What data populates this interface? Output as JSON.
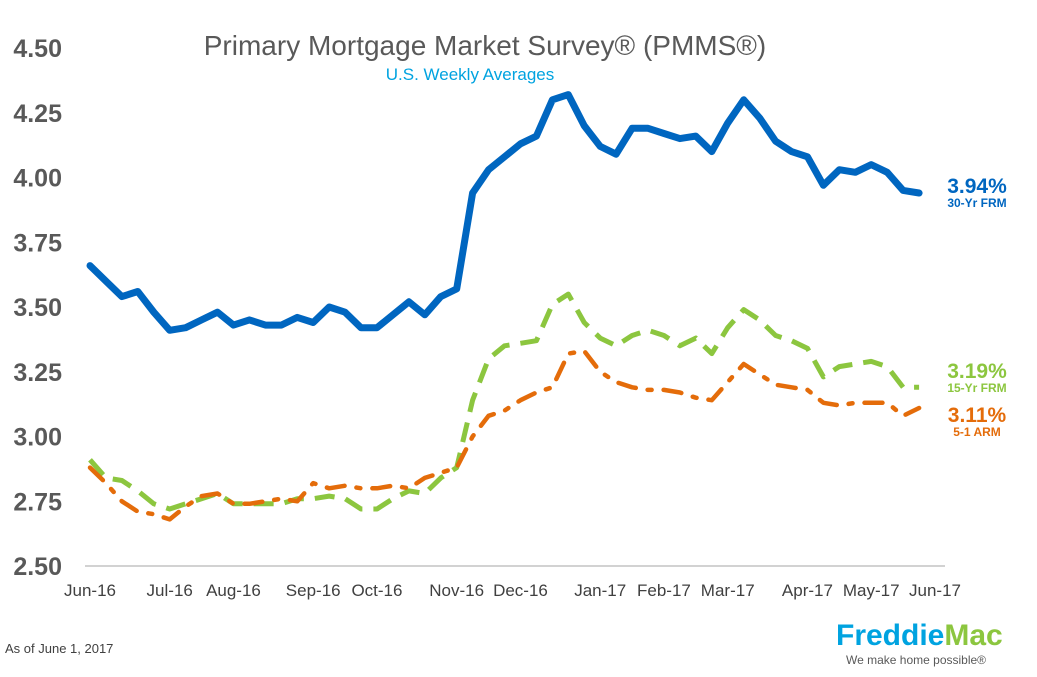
{
  "chart_data": {
    "type": "line",
    "title": "Primary Mortgage Market Survey® (PMMS®)",
    "subtitle": "U.S. Weekly Averages",
    "footnote": "As of June 1, 2017",
    "brand": {
      "name": "FreddieMac",
      "name_part1": "Freddie",
      "name_part2": "Mac",
      "tagline": "We make home possible®"
    },
    "ylim": [
      2.5,
      4.5
    ],
    "yticks": [
      "4.50",
      "4.25",
      "4.00",
      "3.75",
      "3.50",
      "3.25",
      "3.00",
      "2.75",
      "2.50"
    ],
    "xticks": [
      {
        "label": "Jun-16",
        "week": 0
      },
      {
        "label": "Jul-16",
        "week": 5
      },
      {
        "label": "Aug-16",
        "week": 9
      },
      {
        "label": "Sep-16",
        "week": 14
      },
      {
        "label": "Oct-16",
        "week": 18
      },
      {
        "label": "Nov-16",
        "week": 23
      },
      {
        "label": "Dec-16",
        "week": 27
      },
      {
        "label": "Jan-17",
        "week": 32
      },
      {
        "label": "Feb-17",
        "week": 36
      },
      {
        "label": "Mar-17",
        "week": 40
      },
      {
        "label": "Apr-17",
        "week": 45
      },
      {
        "label": "May-17",
        "week": 49
      },
      {
        "label": "Jun-17",
        "week": 53
      }
    ],
    "x_range": [
      0,
      53
    ],
    "series": [
      {
        "name": "30-Yr FRM",
        "end_value": "3.94%",
        "color": "#0066c0",
        "style": "solid",
        "values": [
          3.66,
          3.6,
          3.54,
          3.56,
          3.48,
          3.41,
          3.42,
          3.45,
          3.48,
          3.43,
          3.45,
          3.43,
          3.43,
          3.46,
          3.44,
          3.5,
          3.48,
          3.42,
          3.42,
          3.47,
          3.52,
          3.47,
          3.54,
          3.57,
          3.94,
          4.03,
          4.08,
          4.13,
          4.16,
          4.3,
          4.32,
          4.2,
          4.12,
          4.09,
          4.19,
          4.19,
          4.17,
          4.15,
          4.16,
          4.1,
          4.21,
          4.3,
          4.23,
          4.14,
          4.1,
          4.08,
          3.97,
          4.03,
          4.02,
          4.05,
          4.02,
          3.95,
          3.94
        ]
      },
      {
        "name": "15-Yr FRM",
        "end_value": "3.19%",
        "color": "#8cc63f",
        "style": "dashed",
        "values": [
          2.91,
          2.84,
          2.83,
          2.79,
          2.74,
          2.72,
          2.74,
          2.76,
          2.78,
          2.74,
          2.74,
          2.74,
          2.74,
          2.76,
          2.76,
          2.77,
          2.76,
          2.72,
          2.72,
          2.76,
          2.79,
          2.78,
          2.84,
          2.88,
          3.14,
          3.3,
          3.35,
          3.36,
          3.37,
          3.51,
          3.55,
          3.44,
          3.38,
          3.35,
          3.39,
          3.41,
          3.39,
          3.35,
          3.38,
          3.32,
          3.42,
          3.49,
          3.45,
          3.39,
          3.37,
          3.34,
          3.23,
          3.27,
          3.28,
          3.29,
          3.27,
          3.19,
          3.19
        ]
      },
      {
        "name": "5-1 ARM",
        "end_value": "3.11%",
        "color": "#e46c0a",
        "style": "dashdot",
        "values": [
          2.88,
          2.82,
          2.75,
          2.71,
          2.7,
          2.68,
          2.73,
          2.77,
          2.78,
          2.74,
          2.74,
          2.75,
          2.76,
          2.75,
          2.82,
          2.8,
          2.81,
          2.8,
          2.8,
          2.81,
          2.8,
          2.84,
          2.86,
          2.88,
          3.0,
          3.08,
          3.1,
          3.14,
          3.17,
          3.19,
          3.32,
          3.33,
          3.25,
          3.21,
          3.19,
          3.18,
          3.18,
          3.17,
          3.15,
          3.14,
          3.21,
          3.28,
          3.24,
          3.2,
          3.19,
          3.18,
          3.13,
          3.12,
          3.13,
          3.13,
          3.13,
          3.08,
          3.11
        ]
      }
    ],
    "grid": false,
    "legend": "inline-right"
  }
}
